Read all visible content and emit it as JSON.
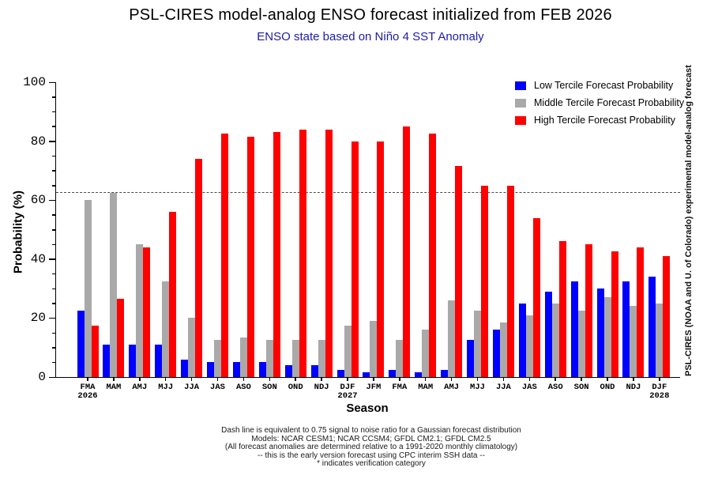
{
  "header": {
    "title": "PSL-CIRES model-analog ENSO forecast initialized from FEB 2026",
    "subtitle": "ENSO state based on Niño 4 SST Anomaly"
  },
  "right_label": "PSL-CIRES (NOAA and U. of Colorado) experimental model-analog forecast",
  "footnotes": [
    "Dash line is equivalent to 0.75 signal to noise ratio for a Gaussian forecast distribution",
    "Models: NCAR CESM1; NCAR CCSM4; GFDL CM2.1; GFDL CM2.5",
    "(All forecast anomalies are determined relative to a 1991-2020 monthly climatology)",
    "-- this is the early version forecast using CPC interim SSH data --",
    "* indicates verification category"
  ],
  "chart_data": {
    "type": "bar",
    "title": "PSL-CIRES model-analog ENSO forecast initialized from FEB 2026",
    "subtitle": "ENSO state based on Niño 4 SST Anomaly",
    "xlabel": "Season",
    "ylabel": "Probability (%)",
    "ylim": [
      0,
      100
    ],
    "ytick_step": 20,
    "yminor_step": 5,
    "grid": false,
    "dashed_line_y": 62.5,
    "legend_position": "top-right",
    "categories": [
      "FMA",
      "MAM",
      "AMJ",
      "MJJ",
      "JJA",
      "JAS",
      "ASO",
      "SON",
      "OND",
      "NDJ",
      "DJF",
      "JFM",
      "FMA",
      "MAM",
      "AMJ",
      "MJJ",
      "JJA",
      "JAS",
      "ASO",
      "SON",
      "OND",
      "NDJ",
      "DJF"
    ],
    "category_years": [
      "2026",
      "",
      "",
      "",
      "",
      "",
      "",
      "",
      "",
      "",
      "2027",
      "",
      "",
      "",
      "",
      "",
      "",
      "",
      "",
      "",
      "",
      "",
      "2028"
    ],
    "series": [
      {
        "key": "low",
        "name": "Low Tercile Forecast Probability",
        "color": "#0000ff",
        "values": [
          22.5,
          11,
          11,
          11,
          6,
          5,
          5,
          5,
          4,
          4,
          2.5,
          1.5,
          2.5,
          1.5,
          2.5,
          12.5,
          16,
          25,
          29,
          32.5,
          30,
          32.5,
          34
        ]
      },
      {
        "key": "middle",
        "name": "Middle Tercile Forecast Probability",
        "color": "#a9a9a9",
        "values": [
          60,
          62.5,
          45,
          32.5,
          20,
          12.5,
          13.5,
          12.5,
          12.5,
          12.5,
          17.5,
          19,
          12.5,
          16,
          26,
          22.5,
          18.5,
          21,
          25,
          22.5,
          27,
          24,
          25
        ]
      },
      {
        "key": "high",
        "name": "High Tercile Forecast Probability",
        "color": "#ff0000",
        "values": [
          17.5,
          26.5,
          44,
          56,
          74,
          82.5,
          81.5,
          83,
          84,
          84,
          80,
          80,
          85,
          82.5,
          71.5,
          65,
          65,
          54,
          46,
          45,
          42.5,
          44,
          41
        ]
      }
    ]
  }
}
